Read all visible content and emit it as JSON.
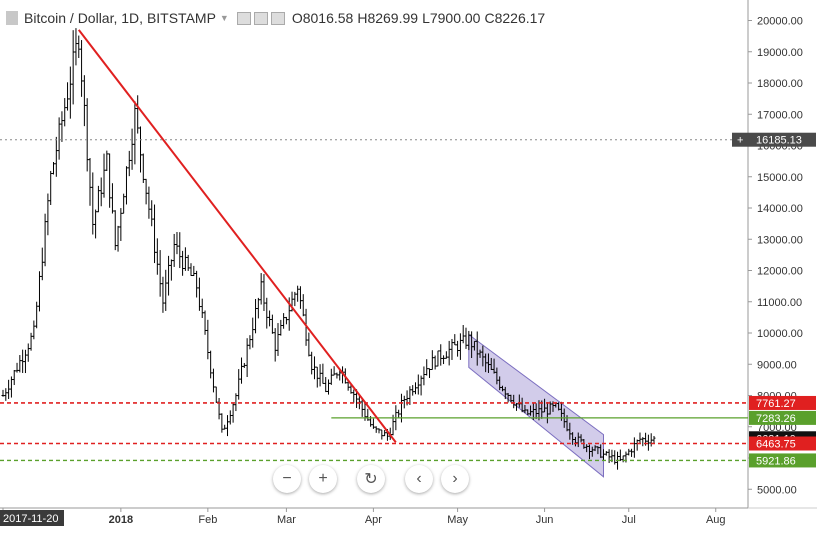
{
  "header": {
    "symbol": "Bitcoin / Dollar, 1D, BITSTAMP",
    "ohlc": [
      {
        "k": "O",
        "v": "8016.58"
      },
      {
        "k": "H",
        "v": "8269.99"
      },
      {
        "k": "L",
        "v": "7900.00"
      },
      {
        "k": "C",
        "v": "8226.17"
      }
    ]
  },
  "controls": [
    {
      "name": "zoom-out-button",
      "glyph": "−"
    },
    {
      "name": "zoom-in-button",
      "glyph": "+"
    },
    {
      "name": "reset-button",
      "glyph": "↻"
    },
    {
      "name": "scroll-left-button",
      "glyph": "‹"
    },
    {
      "name": "scroll-right-button",
      "glyph": "›"
    }
  ],
  "colors": {
    "bars": "#000000",
    "trendline": "#e02020",
    "resistance": "#e02020",
    "support": "#5aa02c",
    "channel_fill": "#9b8fd0",
    "crosshair_label": "#4a4a4a",
    "current_price_label": "#111111"
  },
  "chart_data": {
    "type": "ohlc",
    "title": "Bitcoin / Dollar, 1D, BITSTAMP",
    "x_ticks": [
      "2017-11-20",
      "2018",
      "Feb",
      "Mar",
      "Apr",
      "May",
      "Jun",
      "Jul",
      "Aug"
    ],
    "x_tick_dates": [
      "2017-11-20",
      "2018-01-01",
      "2018-02-01",
      "2018-03-01",
      "2018-04-01",
      "2018-05-01",
      "2018-06-01",
      "2018-07-01",
      "2018-08-01"
    ],
    "y_ticks": [
      5000,
      6000,
      7000,
      8000,
      9000,
      10000,
      11000,
      12000,
      13000,
      14000,
      15000,
      16000,
      17000,
      18000,
      19000,
      20000
    ],
    "y_tick_labels": [
      "5000.00",
      "6000.00",
      "7000.00",
      "8000.00",
      "9000.00",
      "10000.00",
      "11000.00",
      "12000.00",
      "13000.00",
      "14000.00",
      "15000.00",
      "16000.00",
      "17000.00",
      "18000.00",
      "19000.00",
      "20000.00"
    ],
    "x_range": [
      "2017-11-20",
      "2018-08-10"
    ],
    "ylim": [
      4400,
      20400
    ],
    "crosshair_price": "16185.13",
    "price_key_points": [
      [
        "2017-11-20",
        8000
      ],
      [
        "2017-12-01",
        10000
      ],
      [
        "2017-12-07",
        15000
      ],
      [
        "2017-12-17",
        19500
      ],
      [
        "2017-12-22",
        13500
      ],
      [
        "2017-12-27",
        15500
      ],
      [
        "2017-12-30",
        12800
      ],
      [
        "2018-01-06",
        17000
      ],
      [
        "2018-01-16",
        11000
      ],
      [
        "2018-01-20",
        12800
      ],
      [
        "2018-01-28",
        11500
      ],
      [
        "2018-02-06",
        6800
      ],
      [
        "2018-02-11",
        8000
      ],
      [
        "2018-02-20",
        11400
      ],
      [
        "2018-02-25",
        9600
      ],
      [
        "2018-03-05",
        11500
      ],
      [
        "2018-03-10",
        9000
      ],
      [
        "2018-03-15",
        8200
      ],
      [
        "2018-03-20",
        8900
      ],
      [
        "2018-04-01",
        6900
      ],
      [
        "2018-04-06",
        6700
      ],
      [
        "2018-04-12",
        7900
      ],
      [
        "2018-04-20",
        8900
      ],
      [
        "2018-04-25",
        9300
      ],
      [
        "2018-05-05",
        9800
      ],
      [
        "2018-05-15",
        8500
      ],
      [
        "2018-05-25",
        7400
      ],
      [
        "2018-06-05",
        7600
      ],
      [
        "2018-06-12",
        6600
      ],
      [
        "2018-06-22",
        6100
      ],
      [
        "2018-06-28",
        5900
      ],
      [
        "2018-07-05",
        6600
      ],
      [
        "2018-07-10",
        6600
      ]
    ],
    "trendline": {
      "from": [
        "2017-12-17",
        19700
      ],
      "to": [
        "2018-04-09",
        6500
      ]
    },
    "levels": [
      {
        "label": "7761.27",
        "value": 7761.27,
        "kind": "resistance",
        "style": "dashed"
      },
      {
        "label": "7283.26",
        "value": 7283.26,
        "kind": "support",
        "style": "solid",
        "from": "2018-03-17"
      },
      {
        "label": "6631.10",
        "value": 6631.1,
        "kind": "current-price"
      },
      {
        "label": "6463.75",
        "value": 6463.75,
        "kind": "resistance",
        "style": "dashed"
      },
      {
        "label": "5921.86",
        "value": 5921.86,
        "kind": "support",
        "style": "dashed"
      }
    ],
    "channel": {
      "upper": [
        [
          "2018-05-05",
          9950
        ],
        [
          "2018-06-22",
          6750
        ]
      ],
      "lower": [
        [
          "2018-05-05",
          8900
        ],
        [
          "2018-06-22",
          5400
        ]
      ]
    },
    "grid": false
  }
}
